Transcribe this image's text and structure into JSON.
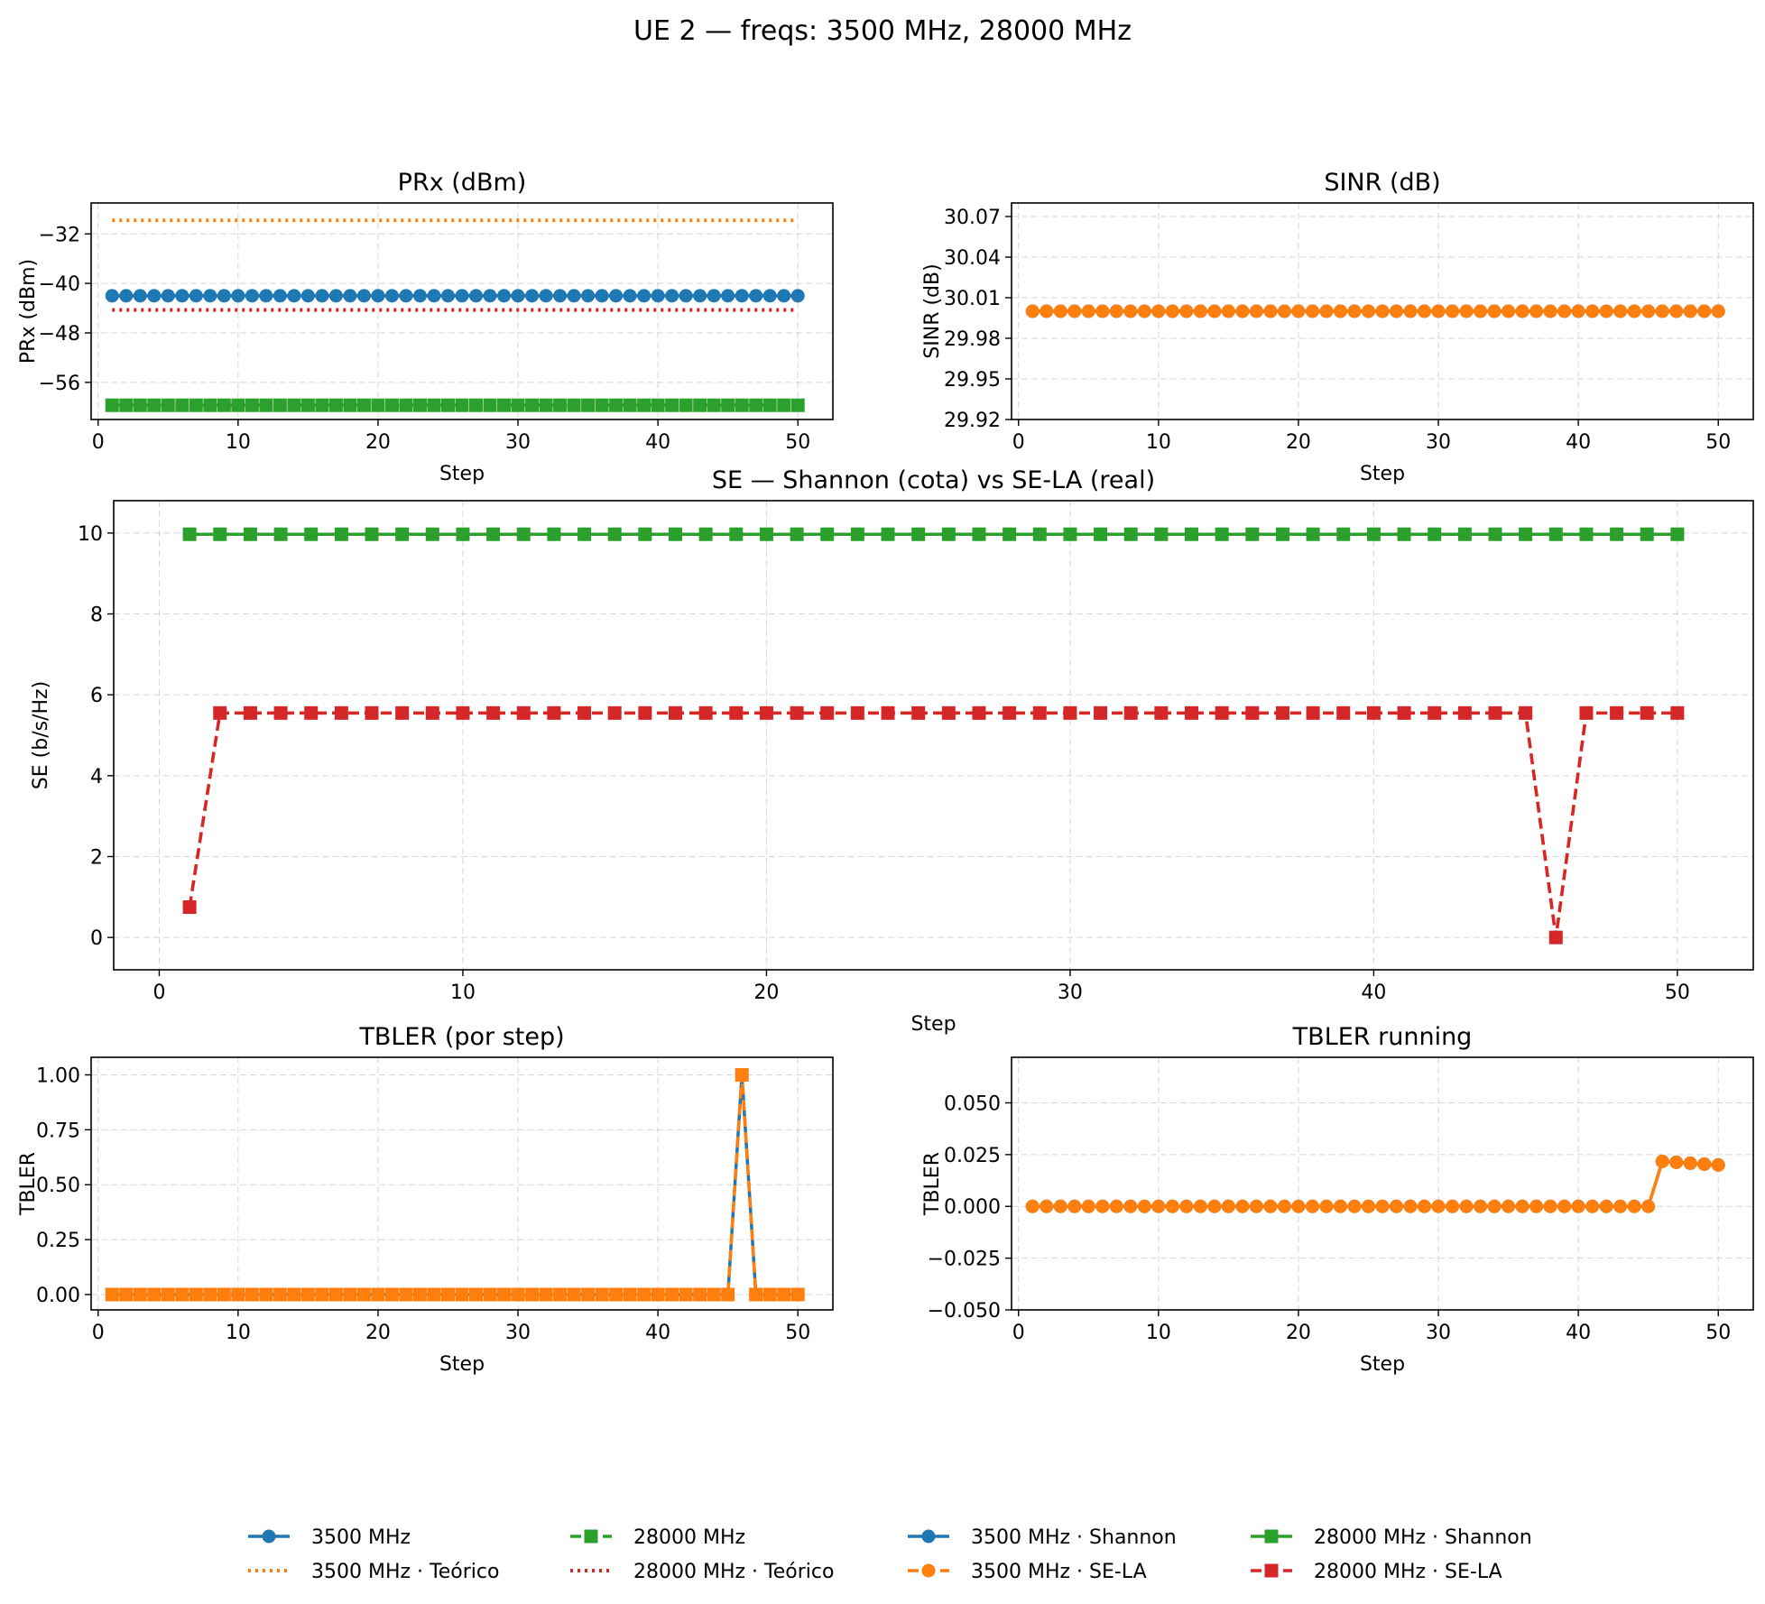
{
  "figure": {
    "title": "UE 2 — freqs: 3500 MHz, 28000 MHz"
  },
  "colors": {
    "blue": "#1f77b4",
    "orange": "#ff7f0e",
    "green": "#2ca02c",
    "red": "#d62728"
  },
  "chart_data": [
    {
      "id": "prx",
      "type": "line",
      "title": "PRx (dBm)",
      "xlabel": "Step",
      "ylabel": "PRx (dBm)",
      "xlim": [
        -0.5,
        52.5
      ],
      "ylim": [
        -62,
        -27
      ],
      "xticks": [
        0,
        10,
        20,
        30,
        40,
        50
      ],
      "yticks": [
        -32,
        -40,
        -48,
        -56
      ],
      "ytick_labels": [
        "−32",
        "−40",
        "−48",
        "−56"
      ],
      "grid": true,
      "x_range": [
        1,
        50
      ],
      "series": [
        {
          "name": "3500 MHz",
          "color": "blue",
          "style": "solid",
          "marker": "circle",
          "value": -42.0
        },
        {
          "name": "28000 MHz",
          "color": "green",
          "style": "dashed",
          "marker": "square",
          "value": -59.7
        },
        {
          "name": "3500 MHz · Teórico",
          "color": "orange",
          "style": "dotted",
          "marker": "none",
          "value": -29.8
        },
        {
          "name": "28000 MHz · Teórico",
          "color": "red",
          "style": "dotted",
          "marker": "none",
          "value": -44.3
        }
      ]
    },
    {
      "id": "sinr",
      "type": "line",
      "title": "SINR (dB)",
      "xlabel": "Step",
      "ylabel": "SINR (dB)",
      "xlim": [
        -0.5,
        52.5
      ],
      "ylim": [
        29.92,
        30.08
      ],
      "xticks": [
        0,
        10,
        20,
        30,
        40,
        50
      ],
      "yticks": [
        30.07,
        30.04,
        30.01,
        29.98,
        29.95,
        29.92
      ],
      "ytick_labels": [
        "30.07",
        "30.04",
        "30.01",
        "29.98",
        "29.95",
        "29.92"
      ],
      "grid": true,
      "x_range": [
        1,
        50
      ],
      "series": [
        {
          "name": "3500 MHz",
          "color": "blue",
          "style": "solid",
          "marker": "circle",
          "value": 30.0
        },
        {
          "name": "28000 MHz",
          "color": "orange",
          "style": "solid",
          "marker": "circle",
          "value": 30.0
        }
      ]
    },
    {
      "id": "se",
      "type": "line",
      "title": "SE — Shannon (cota) vs SE-LA (real)",
      "xlabel": "Step",
      "ylabel": "SE (b/s/Hz)",
      "xlim": [
        -1.5,
        52.5
      ],
      "ylim": [
        -0.8,
        10.8
      ],
      "xticks": [
        0,
        10,
        20,
        30,
        40,
        50
      ],
      "yticks": [
        0,
        2,
        4,
        6,
        8,
        10
      ],
      "ytick_labels": [
        "0",
        "2",
        "4",
        "6",
        "8",
        "10"
      ],
      "grid": true,
      "x_range": [
        1,
        50
      ],
      "series": [
        {
          "name": "3500 MHz · Shannon",
          "color": "blue",
          "style": "solid",
          "marker": "circle",
          "value": 9.97
        },
        {
          "name": "28000 MHz · Shannon",
          "color": "green",
          "style": "solid",
          "marker": "square",
          "value": 9.97
        },
        {
          "name": "3500 MHz · SE-LA",
          "color": "orange",
          "style": "dashed",
          "marker": "circle",
          "base": 5.55,
          "overrides": {
            "1": 0.75,
            "46": 0.0
          }
        },
        {
          "name": "28000 MHz · SE-LA",
          "color": "red",
          "style": "dashed",
          "marker": "square",
          "base": 5.55,
          "overrides": {
            "1": 0.75,
            "46": 0.0
          }
        }
      ]
    },
    {
      "id": "tbler_step",
      "type": "line",
      "title": "TBLER (por step)",
      "xlabel": "Step",
      "ylabel": "TBLER",
      "xlim": [
        -0.5,
        52.5
      ],
      "ylim": [
        -0.07,
        1.08
      ],
      "xticks": [
        0,
        10,
        20,
        30,
        40,
        50
      ],
      "yticks": [
        0.0,
        0.25,
        0.5,
        0.75,
        1.0
      ],
      "ytick_labels": [
        "0.00",
        "0.25",
        "0.50",
        "0.75",
        "1.00"
      ],
      "grid": true,
      "x_range": [
        1,
        50
      ],
      "series": [
        {
          "name": "3500 MHz",
          "color": "blue",
          "style": "solid",
          "marker": "circle",
          "base": 0.0,
          "overrides": {
            "46": 1.0
          }
        },
        {
          "name": "28000 MHz",
          "color": "orange",
          "style": "dashed",
          "marker": "square",
          "base": 0.0,
          "overrides": {
            "46": 1.0
          }
        }
      ]
    },
    {
      "id": "tbler_running",
      "type": "line",
      "title": "TBLER running",
      "xlabel": "Step",
      "ylabel": "TBLER",
      "xlim": [
        -0.5,
        52.5
      ],
      "ylim": [
        -0.05,
        0.072
      ],
      "xticks": [
        0,
        10,
        20,
        30,
        40,
        50
      ],
      "yticks": [
        0.05,
        0.025,
        0.0,
        -0.025,
        -0.05
      ],
      "ytick_labels": [
        "0.050",
        "0.025",
        "0.000",
        "−0.025",
        "−0.050"
      ],
      "grid": true,
      "x_range": [
        1,
        50
      ],
      "series": [
        {
          "name": "3500 MHz",
          "color": "blue",
          "style": "solid",
          "marker": "circle",
          "running_error_steps": [
            46
          ]
        },
        {
          "name": "28000 MHz",
          "color": "orange",
          "style": "solid",
          "marker": "circle",
          "running_error_steps": [
            46
          ]
        }
      ]
    }
  ],
  "legend": {
    "placement": "bottom-center",
    "columns": [
      [
        {
          "label": "3500 MHz",
          "color": "blue",
          "style": "solid",
          "marker": "circle"
        },
        {
          "label": "3500 MHz · Teórico",
          "color": "orange",
          "style": "dotted",
          "marker": "none"
        }
      ],
      [
        {
          "label": "28000 MHz",
          "color": "green",
          "style": "dashed",
          "marker": "square"
        },
        {
          "label": "28000 MHz · Teórico",
          "color": "red",
          "style": "dotted",
          "marker": "none"
        }
      ],
      [
        {
          "label": "3500 MHz · Shannon",
          "color": "blue",
          "style": "solid",
          "marker": "circle"
        },
        {
          "label": "3500 MHz · SE-LA",
          "color": "orange",
          "style": "dashed",
          "marker": "circle"
        }
      ],
      [
        {
          "label": "28000 MHz · Shannon",
          "color": "green",
          "style": "solid",
          "marker": "square"
        },
        {
          "label": "28000 MHz · SE-LA",
          "color": "red",
          "style": "dashed",
          "marker": "square"
        }
      ]
    ]
  }
}
